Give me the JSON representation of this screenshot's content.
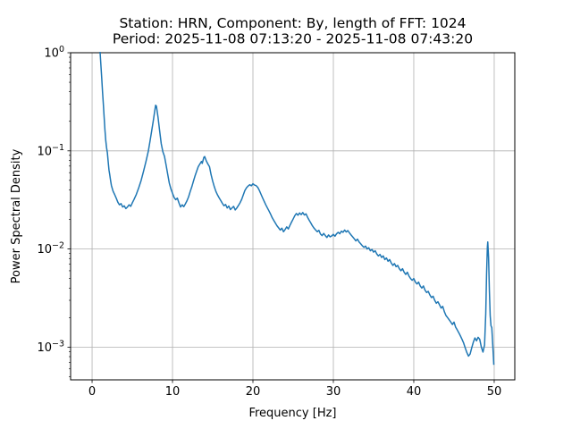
{
  "chart_data": {
    "type": "line",
    "title_lines": [
      "Station: HRN, Component: By, length of FFT: 1024",
      "Period: 2025-11-08 07:13:20 - 2025-11-08 07:43:20"
    ],
    "xlabel": "Frequency [Hz]",
    "ylabel": "Power Spectral Density",
    "x_scale": "linear",
    "y_scale": "log",
    "xlim": [
      -2.67,
      52.56
    ],
    "ylim": [
      0.000464,
      1.0
    ],
    "x_ticks": [
      0,
      10,
      20,
      30,
      40,
      50
    ],
    "y_major_tick_exponents": [
      0,
      -1,
      -2,
      -3
    ],
    "grid": true,
    "legend": "none",
    "line_color": "#1f77b4",
    "line_width": 1.5,
    "grid_color": "#b0b0b0",
    "axes_color": "#000000",
    "background_color": "#ffffff",
    "series": [
      {
        "name": "psd",
        "points": [
          [
            0.92,
            2.5
          ],
          [
            1.0,
            1.0
          ],
          [
            1.1,
            0.74
          ],
          [
            1.2,
            0.55
          ],
          [
            1.3,
            0.4
          ],
          [
            1.4,
            0.3
          ],
          [
            1.5,
            0.22
          ],
          [
            1.6,
            0.163
          ],
          [
            1.7,
            0.128
          ],
          [
            1.8,
            0.108
          ],
          [
            1.9,
            0.096
          ],
          [
            2.0,
            0.078
          ],
          [
            2.1,
            0.064
          ],
          [
            2.2,
            0.057
          ],
          [
            2.3,
            0.05
          ],
          [
            2.4,
            0.0445
          ],
          [
            2.6,
            0.039
          ],
          [
            2.8,
            0.036
          ],
          [
            3.0,
            0.033
          ],
          [
            3.2,
            0.03
          ],
          [
            3.4,
            0.0282
          ],
          [
            3.6,
            0.029
          ],
          [
            3.8,
            0.0268
          ],
          [
            4.0,
            0.0275
          ],
          [
            4.2,
            0.0258
          ],
          [
            4.4,
            0.0268
          ],
          [
            4.6,
            0.0282
          ],
          [
            4.8,
            0.0272
          ],
          [
            5.0,
            0.0295
          ],
          [
            5.2,
            0.0318
          ],
          [
            5.5,
            0.036
          ],
          [
            5.8,
            0.042
          ],
          [
            6.1,
            0.05
          ],
          [
            6.4,
            0.062
          ],
          [
            6.7,
            0.078
          ],
          [
            7.0,
            0.1
          ],
          [
            7.2,
            0.125
          ],
          [
            7.4,
            0.158
          ],
          [
            7.6,
            0.2
          ],
          [
            7.8,
            0.258
          ],
          [
            7.9,
            0.292
          ],
          [
            8.0,
            0.285
          ],
          [
            8.2,
            0.22
          ],
          [
            8.4,
            0.16
          ],
          [
            8.6,
            0.118
          ],
          [
            8.8,
            0.098
          ],
          [
            9.0,
            0.088
          ],
          [
            9.2,
            0.072
          ],
          [
            9.4,
            0.058
          ],
          [
            9.6,
            0.047
          ],
          [
            9.8,
            0.041
          ],
          [
            10.0,
            0.037
          ],
          [
            10.2,
            0.0335
          ],
          [
            10.4,
            0.0318
          ],
          [
            10.6,
            0.033
          ],
          [
            10.8,
            0.0295
          ],
          [
            11.0,
            0.0268
          ],
          [
            11.2,
            0.0282
          ],
          [
            11.4,
            0.027
          ],
          [
            11.6,
            0.0288
          ],
          [
            11.8,
            0.031
          ],
          [
            12.0,
            0.034
          ],
          [
            12.2,
            0.0385
          ],
          [
            12.4,
            0.043
          ],
          [
            12.6,
            0.049
          ],
          [
            12.8,
            0.0555
          ],
          [
            13.0,
            0.062
          ],
          [
            13.2,
            0.069
          ],
          [
            13.4,
            0.0735
          ],
          [
            13.6,
            0.078
          ],
          [
            13.7,
            0.0745
          ],
          [
            13.9,
            0.086
          ],
          [
            14.0,
            0.0875
          ],
          [
            14.2,
            0.079
          ],
          [
            14.4,
            0.0735
          ],
          [
            14.6,
            0.069
          ],
          [
            14.8,
            0.057
          ],
          [
            15.0,
            0.049
          ],
          [
            15.2,
            0.043
          ],
          [
            15.4,
            0.0385
          ],
          [
            15.6,
            0.0355
          ],
          [
            15.8,
            0.0332
          ],
          [
            16.0,
            0.0312
          ],
          [
            16.2,
            0.0292
          ],
          [
            16.4,
            0.0276
          ],
          [
            16.6,
            0.0284
          ],
          [
            16.8,
            0.0262
          ],
          [
            17.0,
            0.0274
          ],
          [
            17.2,
            0.0252
          ],
          [
            17.4,
            0.0262
          ],
          [
            17.6,
            0.0272
          ],
          [
            17.8,
            0.025
          ],
          [
            18.0,
            0.0262
          ],
          [
            18.2,
            0.0278
          ],
          [
            18.4,
            0.0296
          ],
          [
            18.6,
            0.032
          ],
          [
            18.8,
            0.0355
          ],
          [
            19.0,
            0.0395
          ],
          [
            19.2,
            0.042
          ],
          [
            19.4,
            0.0438
          ],
          [
            19.6,
            0.0452
          ],
          [
            19.8,
            0.044
          ],
          [
            20.0,
            0.0462
          ],
          [
            20.2,
            0.0448
          ],
          [
            20.4,
            0.0442
          ],
          [
            20.6,
            0.0425
          ],
          [
            20.8,
            0.0395
          ],
          [
            21.0,
            0.0362
          ],
          [
            21.2,
            0.0332
          ],
          [
            21.4,
            0.0306
          ],
          [
            21.6,
            0.0282
          ],
          [
            21.8,
            0.0262
          ],
          [
            22.0,
            0.0244
          ],
          [
            22.2,
            0.0226
          ],
          [
            22.4,
            0.0208
          ],
          [
            22.6,
            0.0195
          ],
          [
            22.8,
            0.0183
          ],
          [
            23.0,
            0.0172
          ],
          [
            23.2,
            0.0164
          ],
          [
            23.4,
            0.0156
          ],
          [
            23.6,
            0.0163
          ],
          [
            23.8,
            0.015
          ],
          [
            24.0,
            0.0158
          ],
          [
            24.2,
            0.0168
          ],
          [
            24.4,
            0.016
          ],
          [
            24.6,
            0.0174
          ],
          [
            24.8,
            0.0188
          ],
          [
            25.0,
            0.0202
          ],
          [
            25.2,
            0.0218
          ],
          [
            25.4,
            0.023
          ],
          [
            25.6,
            0.0221
          ],
          [
            25.8,
            0.0233
          ],
          [
            26.0,
            0.0224
          ],
          [
            26.2,
            0.0235
          ],
          [
            26.4,
            0.0222
          ],
          [
            26.6,
            0.0228
          ],
          [
            26.8,
            0.021
          ],
          [
            27.0,
            0.0196
          ],
          [
            27.2,
            0.0184
          ],
          [
            27.4,
            0.0172
          ],
          [
            27.6,
            0.0163
          ],
          [
            27.8,
            0.0156
          ],
          [
            28.0,
            0.015
          ],
          [
            28.2,
            0.0155
          ],
          [
            28.4,
            0.0142
          ],
          [
            28.6,
            0.0137
          ],
          [
            28.8,
            0.0144
          ],
          [
            29.0,
            0.0137
          ],
          [
            29.2,
            0.0131
          ],
          [
            29.4,
            0.0139
          ],
          [
            29.6,
            0.0133
          ],
          [
            29.8,
            0.0136
          ],
          [
            30.0,
            0.0141
          ],
          [
            30.2,
            0.0135
          ],
          [
            30.4,
            0.0143
          ],
          [
            30.6,
            0.0148
          ],
          [
            30.8,
            0.0143
          ],
          [
            31.0,
            0.0152
          ],
          [
            31.2,
            0.0148
          ],
          [
            31.4,
            0.0156
          ],
          [
            31.6,
            0.0149
          ],
          [
            31.8,
            0.0154
          ],
          [
            32.0,
            0.0146
          ],
          [
            32.2,
            0.0139
          ],
          [
            32.4,
            0.0133
          ],
          [
            32.6,
            0.0127
          ],
          [
            32.8,
            0.0121
          ],
          [
            33.0,
            0.0126
          ],
          [
            33.2,
            0.0118
          ],
          [
            33.4,
            0.0113
          ],
          [
            33.6,
            0.0108
          ],
          [
            33.8,
            0.0104
          ],
          [
            34.0,
            0.0107
          ],
          [
            34.2,
            0.01
          ],
          [
            34.4,
            0.0103
          ],
          [
            34.6,
            0.0096
          ],
          [
            34.8,
            0.0099
          ],
          [
            35.0,
            0.0093
          ],
          [
            35.2,
            0.0096
          ],
          [
            35.4,
            0.0089
          ],
          [
            35.6,
            0.0085
          ],
          [
            35.8,
            0.0088
          ],
          [
            36.0,
            0.0082
          ],
          [
            36.2,
            0.0085
          ],
          [
            36.4,
            0.0078
          ],
          [
            36.6,
            0.0081
          ],
          [
            36.8,
            0.0075
          ],
          [
            37.0,
            0.0078
          ],
          [
            37.2,
            0.0072
          ],
          [
            37.4,
            0.0068
          ],
          [
            37.6,
            0.0071
          ],
          [
            37.8,
            0.0066
          ],
          [
            38.0,
            0.0068
          ],
          [
            38.2,
            0.0063
          ],
          [
            38.4,
            0.006
          ],
          [
            38.6,
            0.0063
          ],
          [
            38.8,
            0.0058
          ],
          [
            39.0,
            0.0055
          ],
          [
            39.2,
            0.0058
          ],
          [
            39.4,
            0.0053
          ],
          [
            39.6,
            0.005
          ],
          [
            39.8,
            0.0048
          ],
          [
            40.0,
            0.005
          ],
          [
            40.2,
            0.0046
          ],
          [
            40.4,
            0.0044
          ],
          [
            40.6,
            0.0046
          ],
          [
            40.8,
            0.0042
          ],
          [
            41.0,
            0.004
          ],
          [
            41.2,
            0.0042
          ],
          [
            41.4,
            0.0038
          ],
          [
            41.6,
            0.0036
          ],
          [
            41.8,
            0.0037
          ],
          [
            42.0,
            0.0034
          ],
          [
            42.2,
            0.0032
          ],
          [
            42.4,
            0.0033
          ],
          [
            42.6,
            0.003
          ],
          [
            42.8,
            0.0028
          ],
          [
            43.0,
            0.0029
          ],
          [
            43.2,
            0.0027
          ],
          [
            43.4,
            0.0025
          ],
          [
            43.6,
            0.0026
          ],
          [
            43.8,
            0.0023
          ],
          [
            44.0,
            0.0021
          ],
          [
            44.2,
            0.002
          ],
          [
            44.4,
            0.0019
          ],
          [
            44.6,
            0.0018
          ],
          [
            44.8,
            0.0017
          ],
          [
            45.0,
            0.0018
          ],
          [
            45.2,
            0.0016
          ],
          [
            45.4,
            0.0015
          ],
          [
            45.6,
            0.0014
          ],
          [
            45.8,
            0.0013
          ],
          [
            46.0,
            0.0012
          ],
          [
            46.2,
            0.0011
          ],
          [
            46.4,
            0.00098
          ],
          [
            46.6,
            0.00088
          ],
          [
            46.8,
            0.00081
          ],
          [
            47.0,
            0.00085
          ],
          [
            47.2,
            0.00098
          ],
          [
            47.4,
            0.00112
          ],
          [
            47.6,
            0.00124
          ],
          [
            47.8,
            0.00116
          ],
          [
            48.0,
            0.00126
          ],
          [
            48.2,
            0.0012
          ],
          [
            48.4,
            0.001
          ],
          [
            48.6,
            0.00089
          ],
          [
            48.8,
            0.00105
          ],
          [
            48.95,
            0.0022
          ],
          [
            49.05,
            0.0055
          ],
          [
            49.15,
            0.0105
          ],
          [
            49.2,
            0.0118
          ],
          [
            49.3,
            0.0082
          ],
          [
            49.4,
            0.0038
          ],
          [
            49.5,
            0.0021
          ],
          [
            49.6,
            0.00165
          ],
          [
            49.7,
            0.00158
          ],
          [
            49.8,
            0.00112
          ],
          [
            49.9,
            0.0008
          ],
          [
            49.95,
            0.00066
          ]
        ]
      }
    ]
  }
}
